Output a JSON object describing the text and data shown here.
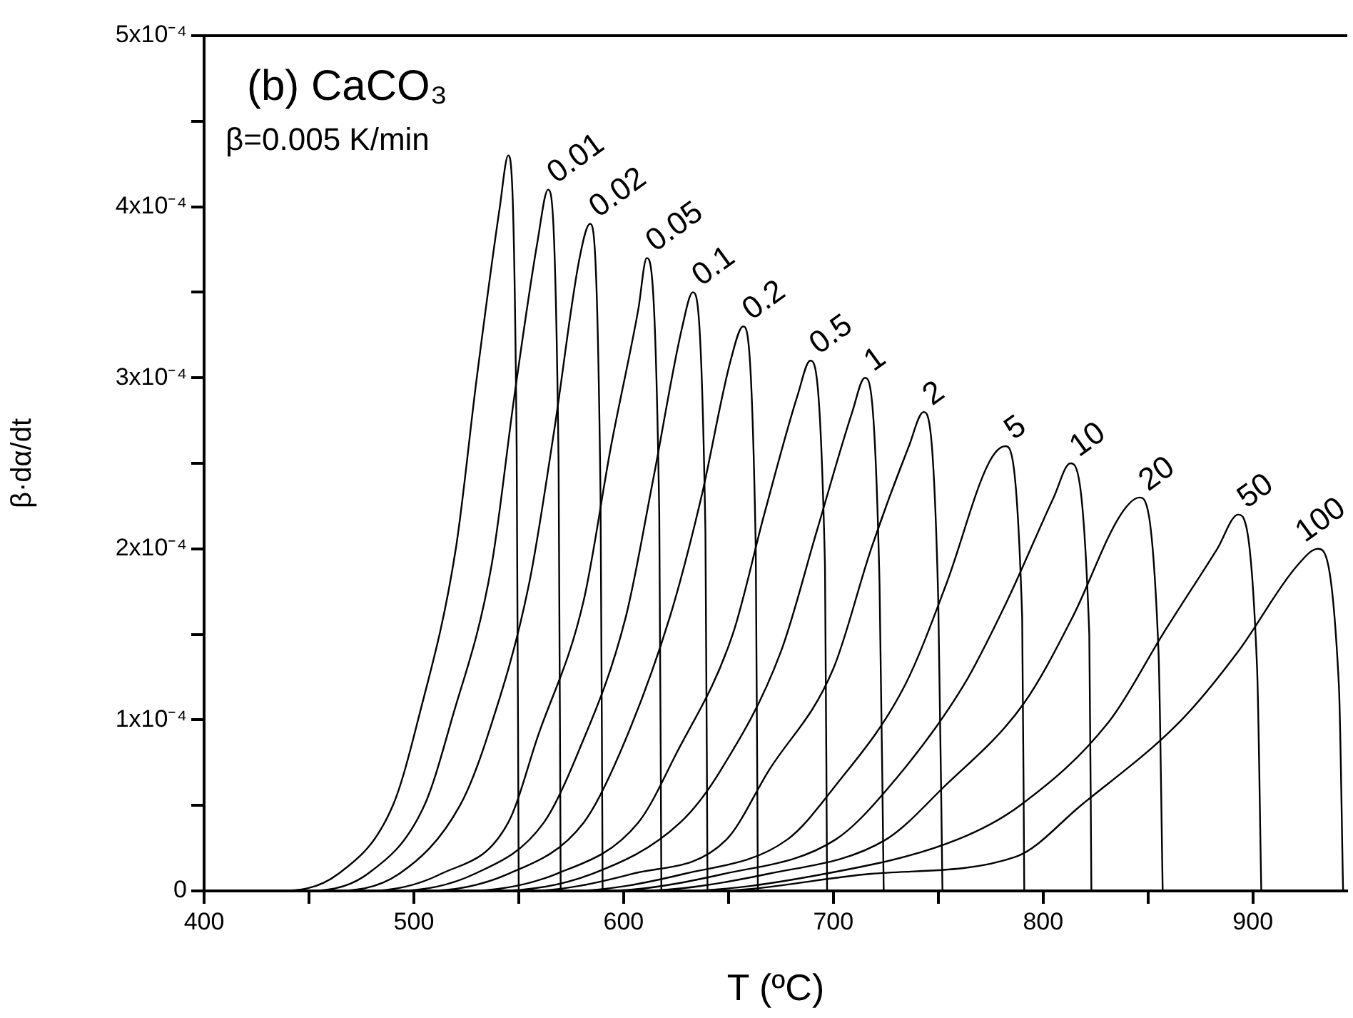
{
  "chart_data": {
    "type": "line",
    "xlabel": "T (ºC)",
    "ylabel": "β·dα/dt",
    "annotations": [
      "(b) CaCO₃",
      "β=0.005 K/min"
    ],
    "marker": "none",
    "xlim": [
      400,
      945
    ],
    "xticks": [
      400,
      {
        "value": 450,
        "label": null
      },
      500,
      {
        "value": 550,
        "label": null
      },
      600,
      {
        "value": 650,
        "label": null
      },
      700,
      {
        "value": 750,
        "label": null
      },
      800,
      {
        "value": 850,
        "label": null
      },
      900
    ],
    "ylim": [
      0,
      0.0005
    ],
    "yticks": [
      0,
      {
        "value": 5e-05,
        "label": null
      },
      {
        "value": 0.0001,
        "label": "1x10⁻⁴"
      },
      {
        "value": 0.00015,
        "label": null
      },
      {
        "value": 0.0002,
        "label": "2x10⁻⁴"
      },
      {
        "value": 0.00025,
        "label": null
      },
      {
        "value": 0.0003,
        "label": "3x10⁻⁴"
      },
      {
        "value": 0.00035,
        "label": null
      },
      {
        "value": 0.0004,
        "label": "4x10⁻⁴"
      },
      {
        "value": 0.00045,
        "label": null
      },
      {
        "value": 0.0005,
        "label": "5x10⁻⁴"
      }
    ],
    "series": [
      {
        "color": "#000000",
        "x": [
          400,
          435,
          464,
          490,
          502,
          520,
          530,
          541,
          545,
          549,
          550
        ],
        "values": [
          0,
          0,
          1e-05,
          5e-05,
          0.0001,
          0.0002,
          0.0003,
          0.0004,
          0.00043,
          0.00026,
          0
        ]
      },
      {
        "name": "0.01",
        "color": "#000000",
        "x": [
          400,
          447,
          478,
          505,
          518,
          537,
          548,
          559,
          564,
          569,
          570
        ],
        "values": [
          0,
          0,
          1e-05,
          5e-05,
          0.0001,
          0.00019,
          0.00029,
          0.00038,
          0.00041,
          0.00025,
          0
        ]
      },
      {
        "name": "0.02",
        "color": "#000000",
        "x": [
          400,
          460,
          493,
          522,
          535,
          555,
          567,
          579,
          584,
          589,
          590
        ],
        "values": [
          0,
          0,
          1e-05,
          5e-05,
          9e-05,
          0.00018,
          0.00027,
          0.00037,
          0.00039,
          0.00023,
          0
        ]
      },
      {
        "name": "0.05",
        "color": "#000000",
        "x": [
          400,
          478,
          513,
          545,
          559,
          581,
          594,
          607,
          611,
          617,
          618
        ],
        "values": [
          0,
          0,
          1e-05,
          4e-05,
          9e-05,
          0.00017,
          0.00026,
          0.00034,
          0.00037,
          0.00022,
          0
        ]
      },
      {
        "name": "0.1",
        "color": "#000000",
        "x": [
          400,
          491,
          529,
          562,
          578,
          601,
          614,
          628,
          633,
          639,
          640
        ],
        "values": [
          0,
          0,
          1e-05,
          4e-05,
          8e-05,
          0.00016,
          0.00024,
          0.00033,
          0.00035,
          0.00021,
          0
        ]
      },
      {
        "name": "0.2",
        "color": "#000000",
        "x": [
          400,
          505,
          545,
          581,
          598,
          622,
          637,
          651,
          657,
          663,
          664
        ],
        "values": [
          0,
          0,
          1e-05,
          4e-05,
          8e-05,
          0.00016,
          0.00023,
          0.00031,
          0.00033,
          0.0002,
          0
        ]
      },
      {
        "name": "0.5",
        "color": "#000000",
        "x": [
          400,
          524,
          568,
          607,
          625,
          652,
          667,
          683,
          689,
          696,
          697
        ],
        "values": [
          0,
          0,
          1e-05,
          4e-05,
          8e-05,
          0.00015,
          0.00022,
          0.00029,
          0.00031,
          0.00019,
          0
        ]
      },
      {
        "name": "1",
        "color": "#000000",
        "x": [
          400,
          539,
          585,
          627,
          646,
          675,
          692,
          709,
          715,
          722,
          724
        ],
        "values": [
          0,
          0,
          1e-05,
          4e-05,
          7e-05,
          0.00014,
          0.00021,
          0.00028,
          0.0003,
          0.00018,
          0
        ]
      },
      {
        "name": "2",
        "color": "#000000",
        "x": [
          400,
          554,
          604,
          649,
          669,
          700,
          718,
          736,
          743,
          750,
          752
        ],
        "values": [
          0,
          0,
          1e-05,
          3e-05,
          7e-05,
          0.00013,
          0.0002,
          0.00026,
          0.00028,
          0.00017,
          0
        ]
      },
      {
        "name": "5",
        "color": "#000000",
        "x": [
          400,
          574,
          629,
          678,
          700,
          734,
          754,
          774,
          782,
          790,
          791
        ],
        "values": [
          0,
          0,
          1e-05,
          3e-05,
          6e-05,
          0.00012,
          0.00018,
          0.00025,
          0.00026,
          0.00016,
          0
        ]
      },
      {
        "name": "10",
        "color": "#000000",
        "x": [
          400,
          590,
          648,
          701,
          726,
          762,
          783,
          805,
          813,
          822,
          823
        ],
        "values": [
          0,
          0,
          1e-05,
          3e-05,
          6e-05,
          0.00012,
          0.00017,
          0.00023,
          0.00025,
          0.00015,
          0
        ]
      },
      {
        "name": "20",
        "color": "#000000",
        "x": [
          400,
          605,
          669,
          725,
          752,
          791,
          814,
          837,
          846,
          855,
          857
        ],
        "values": [
          0,
          0,
          1e-05,
          3e-05,
          6e-05,
          0.00011,
          0.00016,
          0.00022,
          0.00023,
          0.00014,
          0
        ]
      },
      {
        "name": "50",
        "color": "#000000",
        "x": [
          400,
          626,
          696,
          759,
          789,
          832,
          857,
          883,
          893,
          902,
          904
        ],
        "values": [
          0,
          0,
          1e-05,
          3e-05,
          5e-05,
          0.0001,
          0.00015,
          0.0002,
          0.00022,
          0.00013,
          0
        ]
      },
      {
        "name": "100",
        "color": "#000000",
        "x": [
          400,
          642,
          718,
          787,
          818,
          866,
          893,
          921,
          931,
          941,
          943
        ],
        "values": [
          0,
          0,
          1e-05,
          2e-05,
          5e-05,
          0.0001,
          0.00014,
          0.00019,
          0.0002,
          0.00012,
          0
        ]
      }
    ]
  }
}
